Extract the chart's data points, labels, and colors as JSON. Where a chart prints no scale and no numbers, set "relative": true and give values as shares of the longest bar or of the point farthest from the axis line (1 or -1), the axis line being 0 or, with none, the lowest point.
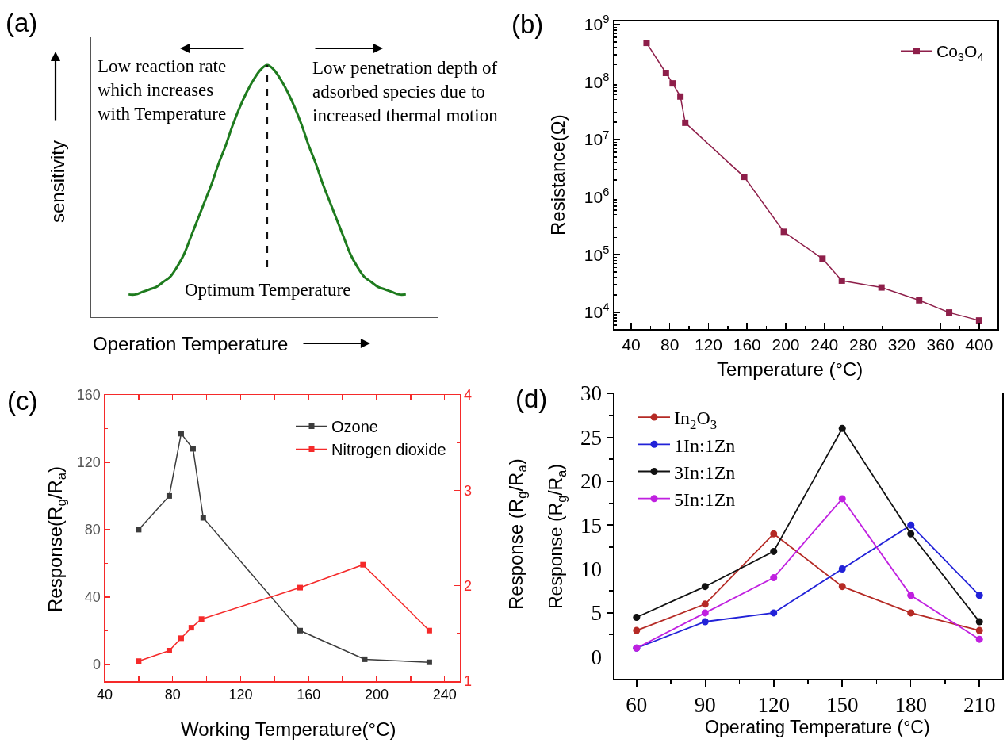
{
  "chart_data": [
    {
      "type": "line",
      "title": "(a)",
      "xlabel": "Operation Temperature",
      "ylabel": "sensitivity",
      "relative": true,
      "categories": [
        null,
        null,
        null,
        null,
        null,
        null,
        null,
        null,
        null,
        null,
        null,
        null,
        null,
        null,
        null,
        null,
        null,
        null,
        null,
        null,
        null,
        null,
        null,
        null,
        null,
        null,
        null,
        null,
        null,
        null,
        null,
        null,
        null,
        null,
        null,
        null,
        null,
        null,
        null,
        null,
        null
      ],
      "series": [
        {
          "color": "#1e7b1e",
          "values": [
            0.09,
            0.09,
            0.1,
            0.11,
            0.12,
            0.14,
            0.16,
            0.2,
            0.25,
            0.32,
            0.39,
            0.46,
            0.53,
            0.61,
            0.68,
            0.76,
            0.83,
            0.89,
            0.94,
            0.98,
            1.0,
            0.98,
            0.94,
            0.89,
            0.83,
            0.76,
            0.68,
            0.61,
            0.53,
            0.46,
            0.39,
            0.32,
            0.25,
            0.2,
            0.16,
            0.14,
            0.12,
            0.11,
            0.1,
            0.09,
            0.09
          ]
        }
      ],
      "annotations": [
        "Low reaction rate which increases with Temperature",
        "Low penetration depth of adsorbed species due to increased thermal motion",
        "Optimum Temperature"
      ]
    },
    {
      "type": "line",
      "title": "(b)",
      "xlabel": "Temperature (°C)",
      "ylabel": "Resistance(Ω)",
      "log": "y",
      "marker": "square",
      "legend": "top right",
      "x": [
        56,
        76,
        83,
        91,
        96,
        157,
        198,
        238,
        258,
        299,
        338,
        369,
        400
      ],
      "series": [
        {
          "name": "Co$_{3}$O$_{4}$",
          "color": "#8e1f4a",
          "values": [
            480000000,
            144000000,
            95000000,
            56000000,
            19600000,
            2250000,
            250000,
            85000,
            35400,
            26900,
            16100,
            9900,
            7200
          ]
        }
      ],
      "xlim": [
        22,
        419
      ],
      "xticks": [
        40,
        {
          "value": 60,
          "label": null
        },
        80,
        {
          "value": 100,
          "label": null
        },
        120,
        {
          "value": 140,
          "label": null
        },
        160,
        {
          "value": 180,
          "label": null
        },
        200,
        {
          "value": 220,
          "label": null
        },
        240,
        {
          "value": 260,
          "label": null
        },
        280,
        {
          "value": 300,
          "label": null
        },
        320,
        {
          "value": 340,
          "label": null
        },
        360,
        {
          "value": 380,
          "label": null
        },
        400
      ],
      "ylim": [
        5100,
        1170000000
      ],
      "yticks": [
        {
          "value": 6000,
          "label": null
        },
        {
          "value": 7000,
          "label": null
        },
        {
          "value": 8000,
          "label": null
        },
        {
          "value": 9000,
          "label": null
        },
        {
          "value": 10000,
          "label": "10$^{4}$"
        },
        {
          "value": 20000,
          "label": null
        },
        {
          "value": 30000,
          "label": null
        },
        {
          "value": 40000,
          "label": null
        },
        {
          "value": 50000,
          "label": null
        },
        {
          "value": 60000,
          "label": null
        },
        {
          "value": 70000,
          "label": null
        },
        {
          "value": 80000,
          "label": null
        },
        {
          "value": 90000,
          "label": null
        },
        {
          "value": 100000,
          "label": "10$^{5}$"
        },
        {
          "value": 200000,
          "label": null
        },
        {
          "value": 300000,
          "label": null
        },
        {
          "value": 400000,
          "label": null
        },
        {
          "value": 500000,
          "label": null
        },
        {
          "value": 600000,
          "label": null
        },
        {
          "value": 700000,
          "label": null
        },
        {
          "value": 800000,
          "label": null
        },
        {
          "value": 900000,
          "label": null
        },
        {
          "value": 1000000,
          "label": "10$^{6}$"
        },
        {
          "value": 2000000,
          "label": null
        },
        {
          "value": 3000000,
          "label": null
        },
        {
          "value": 4000000,
          "label": null
        },
        {
          "value": 5000000,
          "label": null
        },
        {
          "value": 6000000,
          "label": null
        },
        {
          "value": 7000000,
          "label": null
        },
        {
          "value": 8000000,
          "label": null
        },
        {
          "value": 9000000,
          "label": null
        },
        {
          "value": 10000000,
          "label": "10$^{7}$"
        },
        {
          "value": 20000000,
          "label": null
        },
        {
          "value": 30000000,
          "label": null
        },
        {
          "value": 40000000,
          "label": null
        },
        {
          "value": 50000000,
          "label": null
        },
        {
          "value": 60000000,
          "label": null
        },
        {
          "value": 70000000,
          "label": null
        },
        {
          "value": 80000000,
          "label": null
        },
        {
          "value": 90000000,
          "label": null
        },
        {
          "value": 100000000,
          "label": "10$^{8}$"
        },
        {
          "value": 200000000,
          "label": null
        },
        {
          "value": 300000000,
          "label": null
        },
        {
          "value": 400000000,
          "label": null
        },
        {
          "value": 500000000,
          "label": null
        },
        {
          "value": 600000000,
          "label": null
        },
        {
          "value": 700000000,
          "label": null
        },
        {
          "value": 800000000,
          "label": null
        },
        {
          "value": 900000000,
          "label": null
        },
        {
          "value": 1000000000,
          "label": "10$^{9}$"
        }
      ]
    },
    {
      "type": "line",
      "title": "(c)",
      "xlabel": "Working Temperature(°C)",
      "ylabel": "Response(R$_{g}$/R$_{a}$)",
      "y2label": "Response (R$_{g}$/R$_{a}$)",
      "marker": "square",
      "legend": "top right",
      "series": [
        {
          "name": "Ozone",
          "color": "#3c3c3c",
          "x": [
            60,
            78,
            85,
            92,
            98,
            155,
            193,
            231
          ],
          "values": [
            80,
            100,
            137,
            128,
            87,
            20,
            3,
            1.2
          ]
        },
        {
          "name": "Nitrogen dioxide",
          "color": "#f52a2a",
          "axis": "y2",
          "x": [
            60,
            78,
            85,
            91,
            97,
            155,
            192,
            231
          ],
          "values": [
            1.21,
            1.32,
            1.45,
            1.56,
            1.65,
            1.98,
            2.22,
            1.53
          ]
        }
      ],
      "xlim": [
        40,
        249
      ],
      "xticks": [
        40,
        {
          "value": 60,
          "label": null
        },
        80,
        {
          "value": 100,
          "label": null
        },
        120,
        {
          "value": 140,
          "label": null
        },
        160,
        {
          "value": 180,
          "label": null
        },
        200,
        {
          "value": 220,
          "label": null
        },
        240
      ],
      "ylim": [
        -10,
        160
      ],
      "yticks": [
        0,
        {
          "value": 20,
          "label": null
        },
        40,
        {
          "value": 60,
          "label": null
        },
        80,
        {
          "value": 100,
          "label": null
        },
        120,
        {
          "value": 140,
          "label": null
        },
        160
      ],
      "y2lim": [
        1,
        4
      ],
      "y2ticks": [
        1,
        {
          "value": 1.5,
          "label": null
        },
        2,
        {
          "value": 2.5,
          "label": null
        },
        3,
        {
          "value": 3.5,
          "label": null
        },
        4
      ]
    },
    {
      "type": "line",
      "title": "(d)",
      "xlabel": "Operating Temperature (°C)",
      "ylabel": "Response (R$_{g}$/R$_{a}$)",
      "marker": "circle",
      "legend": "top left",
      "x": [
        60,
        90,
        120,
        150,
        180,
        210
      ],
      "series": [
        {
          "name": "In$_{2}$O$_{3}$",
          "color": "#b52a25",
          "values": [
            3,
            6,
            14,
            8,
            5,
            3
          ]
        },
        {
          "name": "1In:1Zn",
          "color": "#2222d8",
          "values": [
            1,
            4,
            5,
            10,
            15,
            7
          ]
        },
        {
          "name": "3In:1Zn",
          "color": "#111111",
          "values": [
            4.5,
            8,
            12,
            26,
            14,
            4
          ]
        },
        {
          "name": "5In:1Zn",
          "color": "#c020e0",
          "values": [
            1,
            5,
            9,
            18,
            7,
            2
          ]
        }
      ],
      "xlim": [
        50,
        220
      ],
      "xticks": [
        60,
        {
          "value": 75,
          "label": null
        },
        90,
        {
          "value": 105,
          "label": null
        },
        120,
        {
          "value": 135,
          "label": null
        },
        150,
        {
          "value": 165,
          "label": null
        },
        180,
        {
          "value": 195,
          "label": null
        },
        210
      ],
      "ylim": [
        -2.5,
        30
      ],
      "yticks": [
        0,
        {
          "value": 2.5,
          "label": null
        },
        5,
        {
          "value": 7.5,
          "label": null
        },
        10,
        {
          "value": 12.5,
          "label": null
        },
        15,
        {
          "value": 17.5,
          "label": null
        },
        20,
        {
          "value": 22.5,
          "label": null
        },
        25,
        {
          "value": 27.5,
          "label": null
        },
        30
      ]
    }
  ]
}
